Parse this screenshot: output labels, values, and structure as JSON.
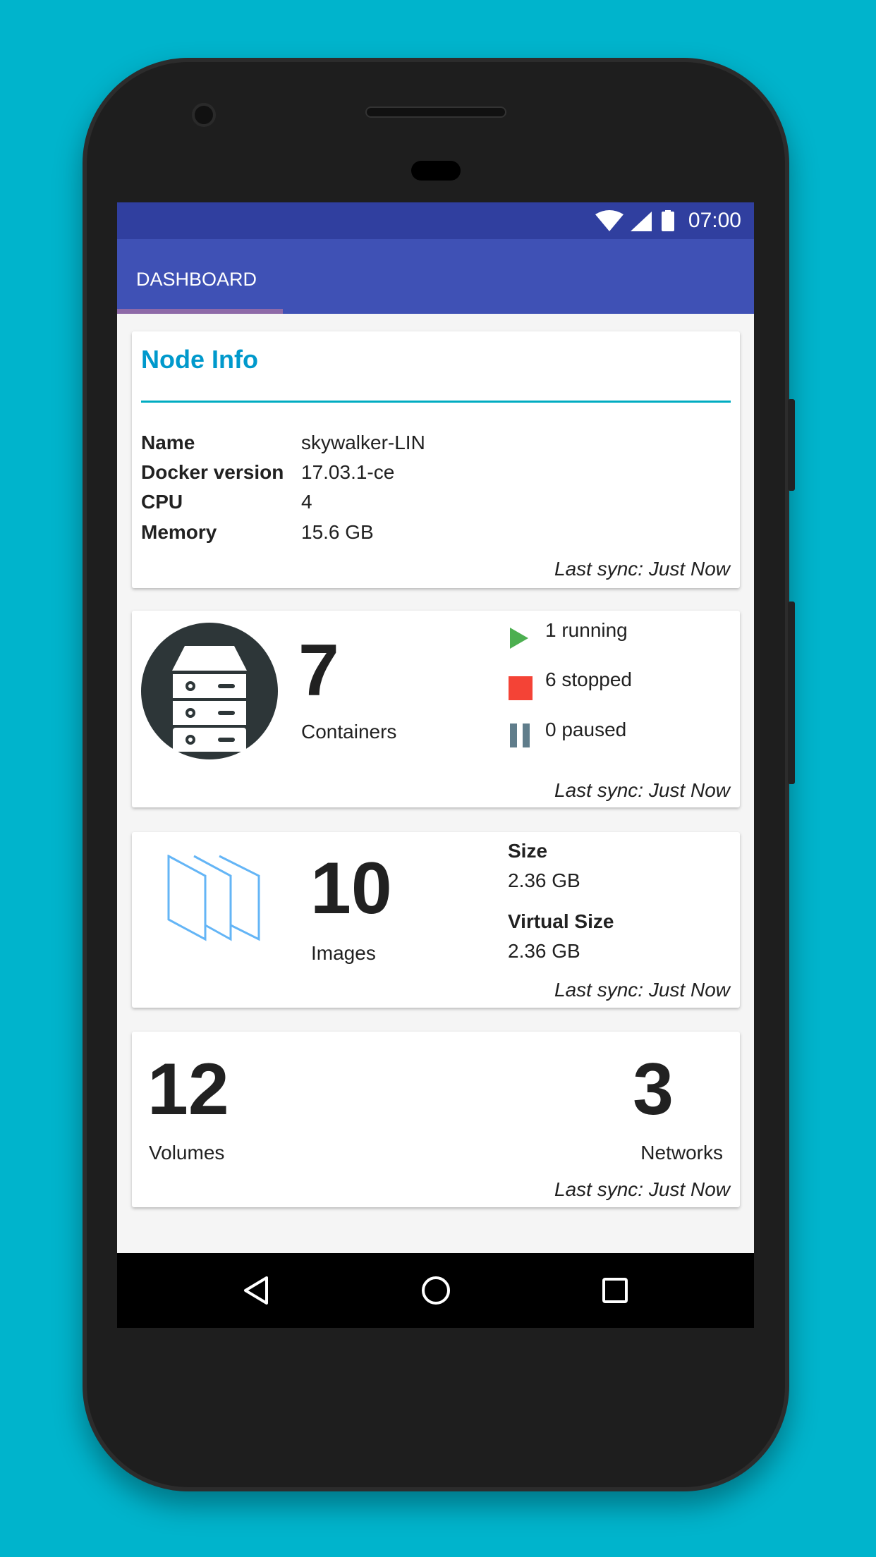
{
  "status_bar": {
    "time": "07:00",
    "icons": [
      "wifi-icon",
      "signal-icon",
      "battery-icon"
    ]
  },
  "app_bar": {
    "tabs": [
      {
        "label": "DASHBOARD",
        "active": true
      }
    ]
  },
  "node_info": {
    "title": "Node Info",
    "rows": [
      {
        "label": "Name",
        "value": "skywalker-LIN"
      },
      {
        "label": "Docker version",
        "value": "17.03.1-ce"
      },
      {
        "label": "CPU",
        "value": "4"
      },
      {
        "label": "Memory",
        "value": "15.6 GB"
      }
    ],
    "last_sync": "Last sync: Just Now"
  },
  "containers": {
    "count": "7",
    "label": "Containers",
    "running": "1 running",
    "stopped": "6 stopped",
    "paused": "0 paused",
    "last_sync": "Last sync: Just Now"
  },
  "images": {
    "count": "10",
    "label": "Images",
    "size_label": "Size",
    "size": "2.36 GB",
    "virtual_size_label": "Virtual Size",
    "virtual_size": "2.36 GB",
    "last_sync": "Last sync: Just Now"
  },
  "misc": {
    "volumes_count": "12",
    "volumes_label": "Volumes",
    "networks_count": "3",
    "networks_label": "Networks",
    "last_sync": "Last sync: Just Now"
  },
  "colors": {
    "primary": "#3f51b5",
    "primary_dark": "#303f9f",
    "accent_title": "#0099cc",
    "divider": "#00acc1",
    "running": "#4caf50",
    "stopped": "#f44336",
    "paused": "#607d8b",
    "images_icon": "#64b5f6",
    "background": "#00b4cc"
  }
}
